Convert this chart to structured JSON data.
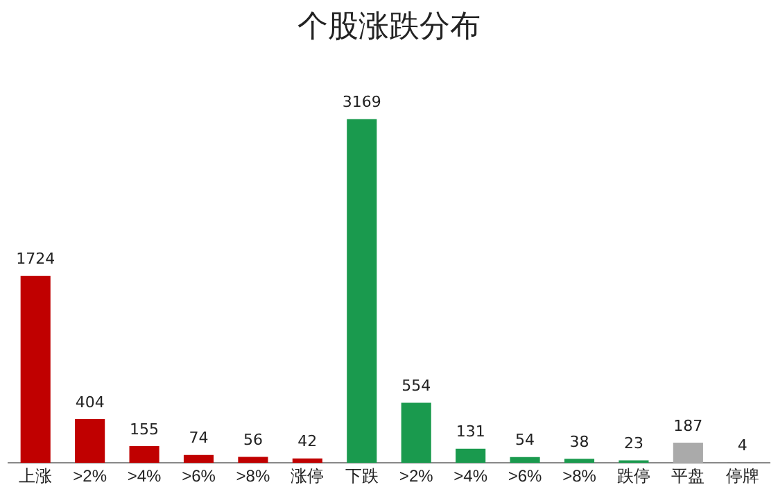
{
  "chart_data": {
    "type": "bar",
    "title": "个股涨跌分布",
    "categories": [
      "上涨",
      ">2%",
      ">4%",
      ">6%",
      ">8%",
      "涨停",
      "下跌",
      ">2%",
      ">4%",
      ">6%",
      ">8%",
      "跌停",
      "平盘",
      "停牌"
    ],
    "values": [
      1724,
      404,
      155,
      74,
      56,
      42,
      3169,
      554,
      131,
      54,
      38,
      23,
      187,
      4
    ],
    "colors": [
      "#c00000",
      "#c00000",
      "#c00000",
      "#c00000",
      "#c00000",
      "#c00000",
      "#1a9a4e",
      "#1a9a4e",
      "#1a9a4e",
      "#1a9a4e",
      "#1a9a4e",
      "#1a9a4e",
      "#aaaaaa",
      "#7f7f7f"
    ],
    "data_labels": true,
    "grid": false,
    "legend": false,
    "tick_labels": "x"
  }
}
